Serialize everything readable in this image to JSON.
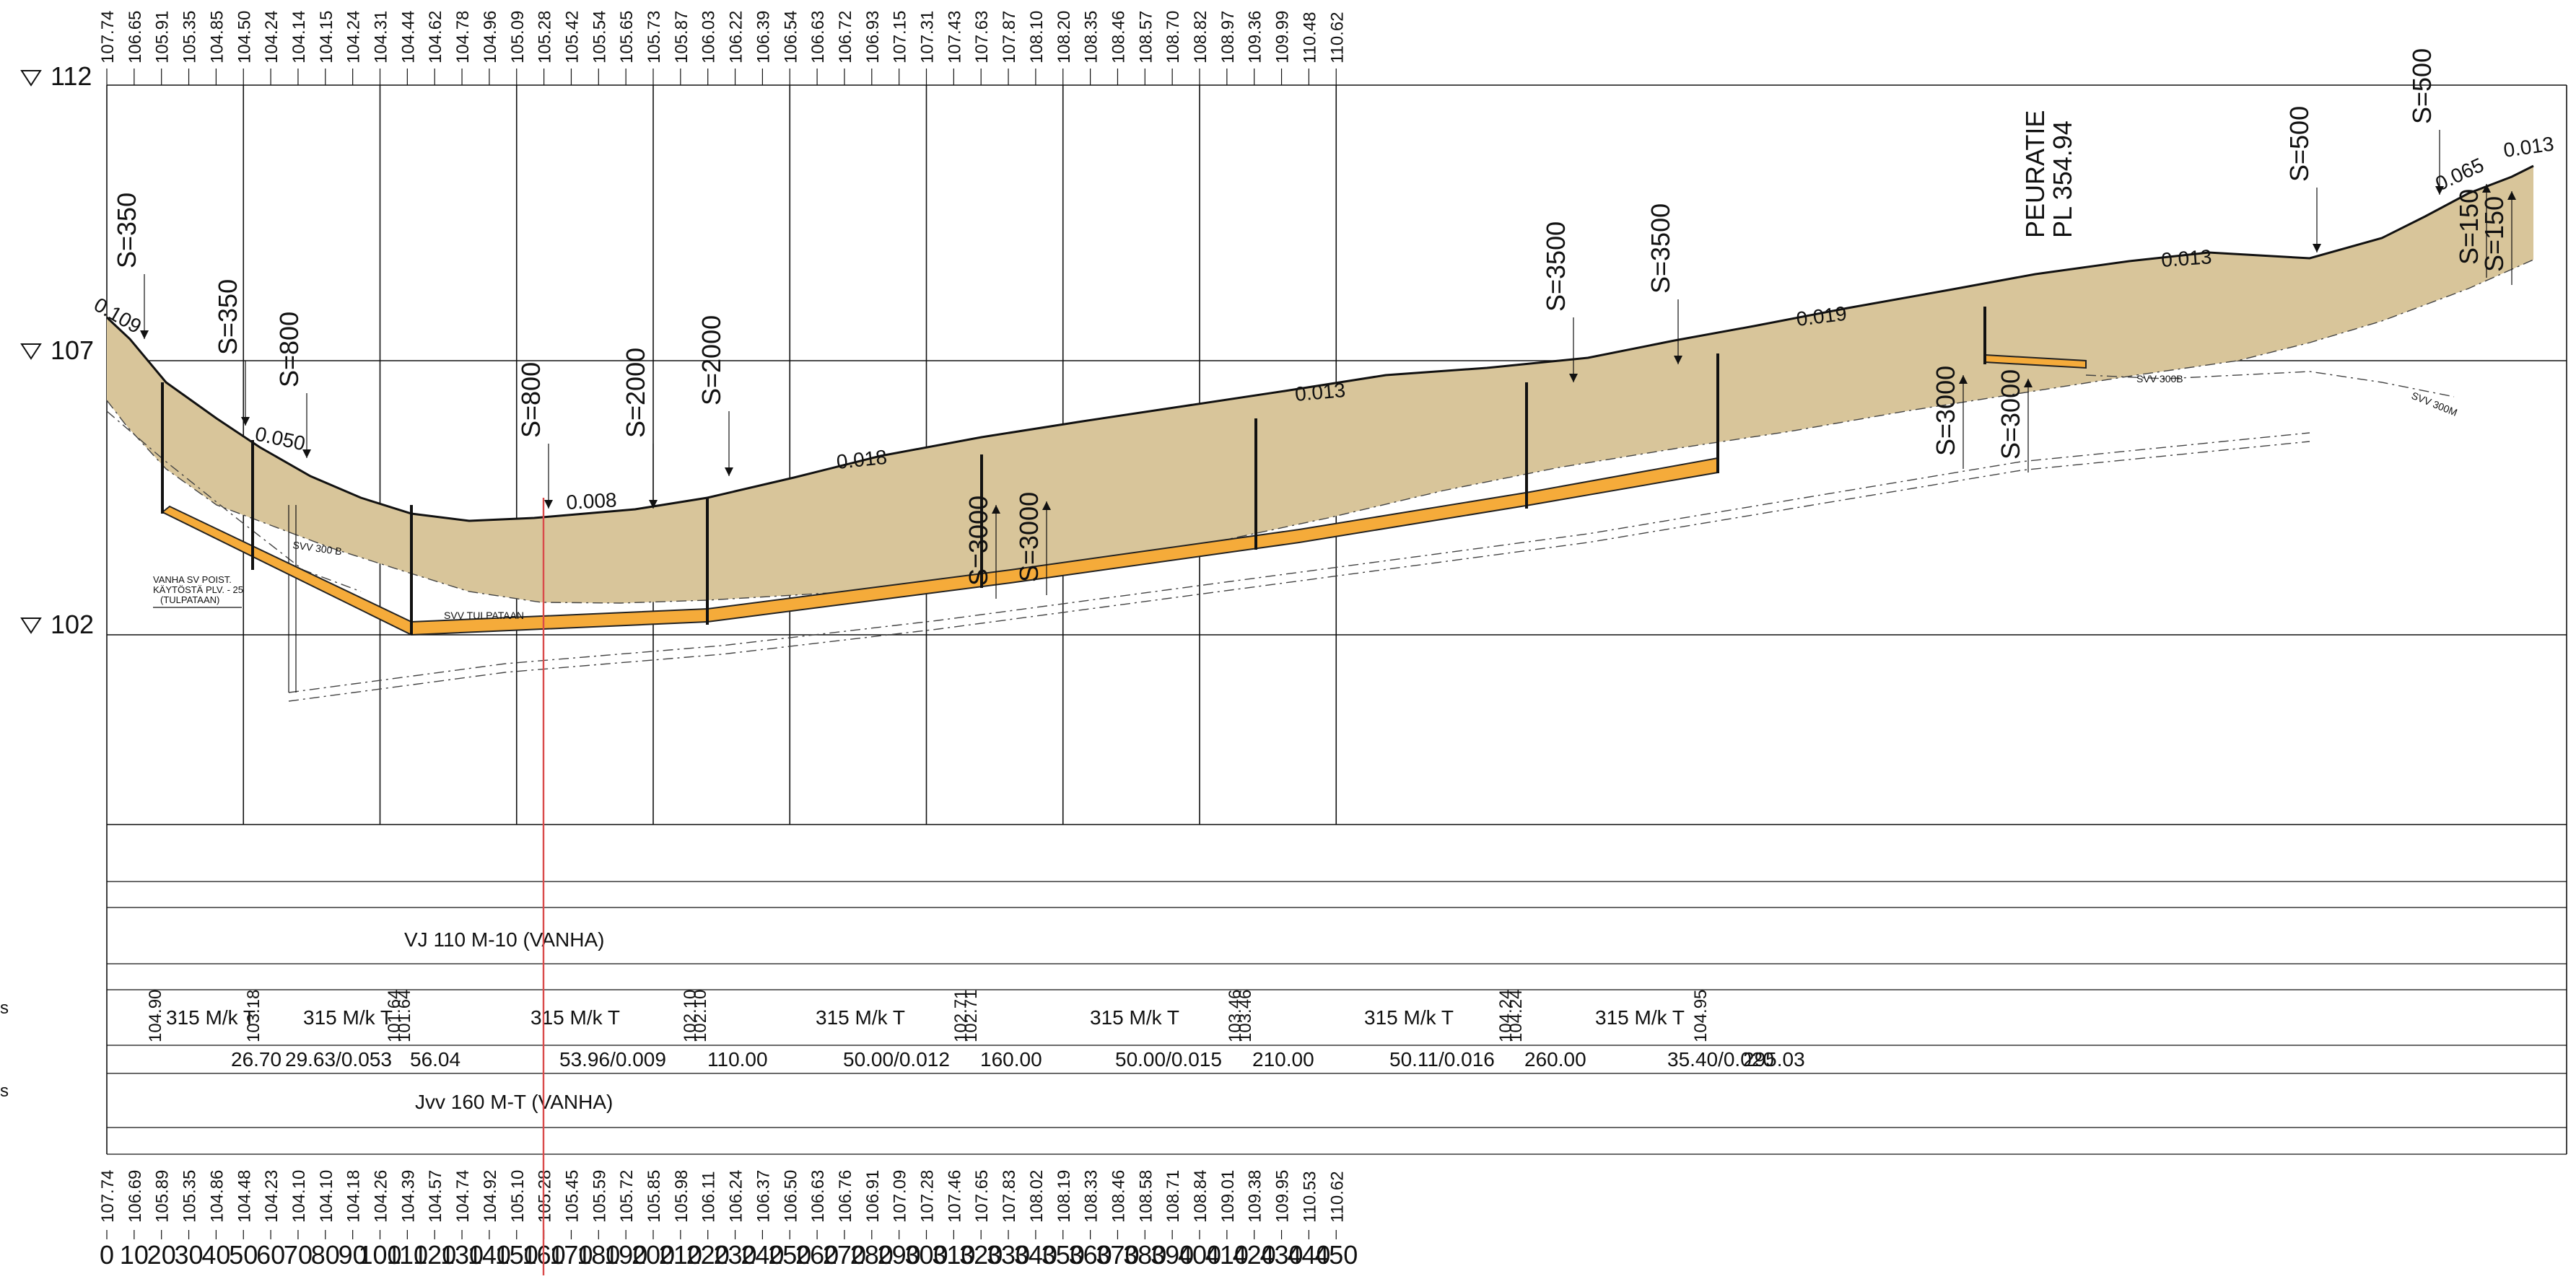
{
  "top_elevations": [
    "107.74",
    "106.65",
    "105.91",
    "105.35",
    "104.85",
    "104.50",
    "104.24",
    "104.14",
    "104.15",
    "104.24",
    "104.31",
    "104.44",
    "104.62",
    "104.78",
    "104.96",
    "105.09",
    "105.28",
    "105.42",
    "105.54",
    "105.65",
    "105.73",
    "105.87",
    "106.03",
    "106.22",
    "106.39",
    "106.54",
    "106.63",
    "106.72",
    "106.93",
    "107.15",
    "107.31",
    "107.43",
    "107.63",
    "107.87",
    "108.10",
    "108.20",
    "108.35",
    "108.46",
    "108.57",
    "108.70",
    "108.82",
    "108.97",
    "109.36",
    "109.99",
    "110.48",
    "110.62"
  ],
  "bottom_elevations": [
    "107.74",
    "106.69",
    "105.89",
    "105.35",
    "104.86",
    "104.48",
    "104.23",
    "104.10",
    "104.10",
    "104.18",
    "104.26",
    "104.39",
    "104.57",
    "104.74",
    "104.92",
    "105.10",
    "105.28",
    "105.45",
    "105.59",
    "105.72",
    "105.85",
    "105.98",
    "106.11",
    "106.24",
    "106.37",
    "106.50",
    "106.63",
    "106.76",
    "106.91",
    "107.09",
    "107.28",
    "107.46",
    "107.65",
    "107.83",
    "108.02",
    "108.19",
    "108.33",
    "108.46",
    "108.58",
    "108.71",
    "108.84",
    "109.01",
    "109.38",
    "109.95",
    "110.53",
    "110.62"
  ],
  "stations": [
    "0",
    "10",
    "20",
    "30",
    "40",
    "50",
    "60",
    "70",
    "80",
    "90",
    "100",
    "110",
    "120",
    "130",
    "140",
    "150",
    "160",
    "170",
    "180",
    "190",
    "200",
    "210",
    "220",
    "230",
    "240",
    "250",
    "260",
    "270",
    "280",
    "290",
    "300",
    "310",
    "320",
    "330",
    "340",
    "350",
    "360",
    "370",
    "380",
    "390",
    "400",
    "410",
    "420",
    "430",
    "440",
    "450"
  ],
  "levels": [
    {
      "mark": "▽",
      "value": "112"
    },
    {
      "mark": "▽",
      "value": "107"
    },
    {
      "mark": "▽",
      "value": "102"
    }
  ],
  "slopes": [
    "0.109",
    "0.050",
    "0.008",
    "0.018",
    "0.013",
    "0.019",
    "0.013",
    "0.065",
    "0.013"
  ],
  "radii": [
    {
      "label": "S=350",
      "dir": "down"
    },
    {
      "label": "S=350",
      "dir": "down"
    },
    {
      "label": "S=800",
      "dir": "down"
    },
    {
      "label": "S=800",
      "dir": "down"
    },
    {
      "label": "S=2000",
      "dir": "down"
    },
    {
      "label": "S=2000",
      "dir": "down"
    },
    {
      "label": "S=3000",
      "dir": "up"
    },
    {
      "label": "S=3000",
      "dir": "up"
    },
    {
      "label": "S=3500",
      "dir": "down"
    },
    {
      "label": "S=3500",
      "dir": "down"
    },
    {
      "label": "S=3000",
      "dir": "up"
    },
    {
      "label": "S=3000",
      "dir": "up"
    },
    {
      "label": "S=500",
      "dir": "down"
    },
    {
      "label": "S=500",
      "dir": "down"
    },
    {
      "label": "S=150",
      "dir": "up"
    },
    {
      "label": "S=150",
      "dir": "up"
    }
  ],
  "peuratie": {
    "name": "PEURATIE",
    "station": "PL 354.94"
  },
  "annotations": {
    "old_pipe_note": [
      "VANHA SV POIST.",
      "KÄYTÖSTÄ PLV. - 25",
      "(TULPATAAN)"
    ],
    "svv_300b_left": "SVV 300 B",
    "svv_tulpataan": "SVV TULPATAAN",
    "svv_300b_right": "SVV 300B",
    "svv_300m": "SVV 300M"
  },
  "rows": {
    "vj": "VJ 110 M-10   (VANHA)",
    "jvv": "Jvv 160 M-T (VANHA)",
    "side_marks": [
      "s",
      "s"
    ],
    "pipe_segments": [
      {
        "start_elev": "104.90",
        "label": "315 M/k T",
        "end_elev": "103.18"
      },
      {
        "start_elev": "",
        "label": "315 M/k T",
        "end_elev": "101.64"
      },
      {
        "start_elev": "101.64",
        "label": "315 M/k T",
        "end_elev": "102.10"
      },
      {
        "start_elev": "102.10",
        "label": "315 M/k T",
        "end_elev": "102.71"
      },
      {
        "start_elev": "102.71",
        "label": "315 M/k T",
        "end_elev": "103.46"
      },
      {
        "start_elev": "103.46",
        "label": "315 M/k T",
        "end_elev": "104.24"
      },
      {
        "start_elev": "104.24",
        "label": "315 M/k T",
        "end_elev": "104.95"
      }
    ],
    "lengths": [
      "26.70",
      "29.63/0.053",
      "56.04",
      "53.96/0.009",
      "110.00",
      "50.00/0.012",
      "160.00",
      "50.00/0.015",
      "210.00",
      "50.11/0.016",
      "260.00",
      "35.40/0.020",
      "295.03"
    ]
  },
  "colors": {
    "fill_soil": "#d8c59a",
    "pipe": "#f5ab3a",
    "marker": "#d94a4a",
    "grid": "#111111"
  }
}
